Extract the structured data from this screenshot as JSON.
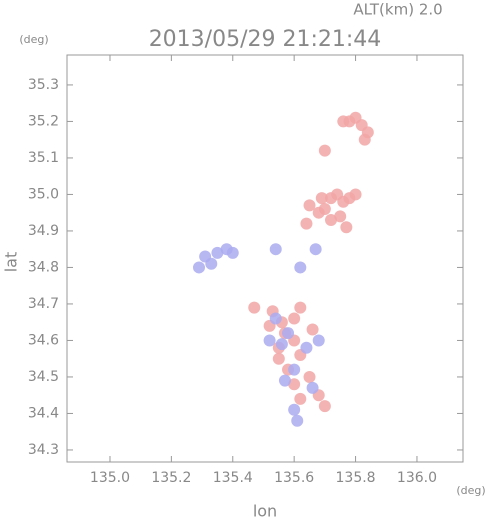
{
  "chart_data": {
    "type": "scatter",
    "title": "2013/05/29 21:21:44",
    "subtitle": "ALT(km) 2.0",
    "y_unit": "(deg)",
    "x_unit": "(deg)",
    "xlabel": "lon",
    "ylabel": "lat",
    "xlim": [
      134.86,
      136.15
    ],
    "ylim": [
      34.267,
      35.382
    ],
    "xticks": [
      {
        "value": 135,
        "label": "135.0"
      },
      135.2,
      135.4,
      135.6,
      135.8,
      {
        "value": 136,
        "label": "136.0"
      }
    ],
    "yticks": [
      35.3,
      35.2,
      35.1,
      {
        "value": 35,
        "label": "35.0"
      },
      34.9,
      34.8,
      34.7,
      34.6,
      34.5,
      34.4,
      34.3
    ],
    "series": [
      {
        "color": "#f2a6a6",
        "x": [
          135.78,
          135.8,
          135.82,
          135.76,
          135.84,
          135.83,
          135.7,
          135.72,
          135.74,
          135.76,
          135.7,
          135.68,
          135.72,
          135.75,
          135.65,
          135.78,
          135.8,
          135.77,
          135.69,
          135.64,
          135.47,
          135.53,
          135.56,
          135.6,
          135.62,
          135.52,
          135.57,
          135.6,
          135.55,
          135.62,
          135.58,
          135.6,
          135.65,
          135.68,
          135.62,
          135.7,
          135.66,
          135.55
        ],
        "y": [
          35.2,
          35.21,
          35.19,
          35.2,
          35.17,
          35.15,
          35.12,
          34.99,
          35.0,
          34.98,
          34.96,
          34.95,
          34.93,
          34.94,
          34.97,
          34.99,
          35.0,
          34.91,
          34.99,
          34.92,
          34.69,
          34.68,
          34.65,
          34.66,
          34.69,
          34.64,
          34.62,
          34.6,
          34.58,
          34.56,
          34.52,
          34.48,
          34.5,
          34.45,
          34.44,
          34.42,
          34.63,
          34.55
        ]
      },
      {
        "color": "#aaaaf0",
        "x": [
          135.31,
          135.35,
          135.38,
          135.33,
          135.29,
          135.4,
          135.54,
          135.58,
          135.56,
          135.64,
          135.52,
          135.6,
          135.57,
          135.66,
          135.6,
          135.61,
          135.68,
          135.54,
          135.62,
          135.67
        ],
        "y": [
          34.83,
          34.84,
          34.85,
          34.81,
          34.8,
          34.84,
          34.66,
          34.62,
          34.59,
          34.58,
          34.6,
          34.52,
          34.49,
          34.47,
          34.41,
          34.38,
          34.6,
          34.85,
          34.8,
          34.85
        ]
      }
    ]
  }
}
